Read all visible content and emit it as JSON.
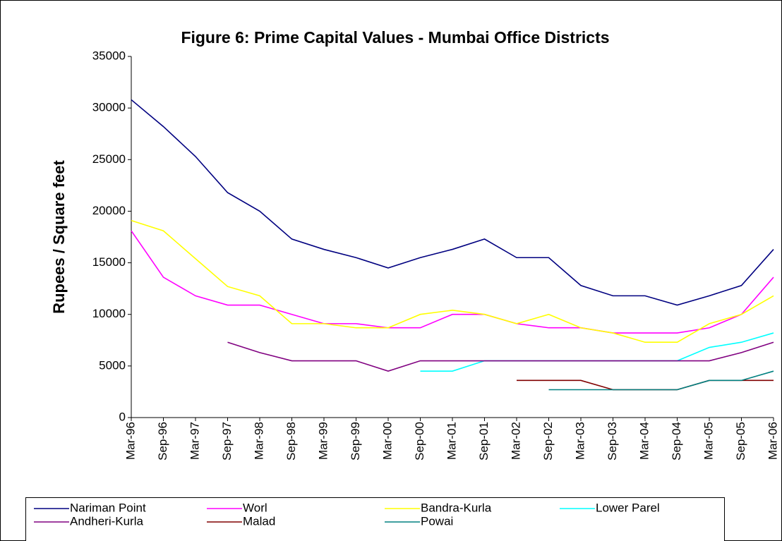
{
  "chart_data": {
    "type": "line",
    "title": "Figure 6: Prime Capital Values - Mumbai Office Districts",
    "y_label": "Rupees / Square feet",
    "categories": [
      "Mar-96",
      "Sep-96",
      "Mar-97",
      "Sep-97",
      "Mar-98",
      "Sep-98",
      "Mar-99",
      "Sep-99",
      "Mar-00",
      "Sep-00",
      "Mar-01",
      "Sep-01",
      "Mar-02",
      "Sep-02",
      "Mar-03",
      "Sep-03",
      "Mar-04",
      "Sep-04",
      "Mar-05",
      "Sep-05",
      "Mar-06"
    ],
    "ylim": [
      0,
      35000
    ],
    "yticks": [
      0,
      5000,
      10000,
      15000,
      20000,
      25000,
      30000,
      35000
    ],
    "grid": false,
    "legend": "bottom",
    "series": [
      {
        "name": "Nariman Point",
        "color": "#000080",
        "values": [
          30800,
          28200,
          25300,
          21800,
          20000,
          17300,
          16300,
          15500,
          14500,
          15500,
          16300,
          17300,
          15500,
          15500,
          12800,
          11800,
          11800,
          10900,
          11800,
          12800,
          16300
        ]
      },
      {
        "name": "Worl",
        "color": "#ff00ff",
        "values": [
          18100,
          13600,
          11800,
          10900,
          10900,
          10000,
          9100,
          9100,
          8700,
          8700,
          10000,
          10000,
          9100,
          8700,
          8700,
          8200,
          8200,
          8200,
          8700,
          10000,
          13600
        ]
      },
      {
        "name": "Bandra-Kurla",
        "color": "#ffff00",
        "values": [
          19100,
          18100,
          15400,
          12700,
          11800,
          9100,
          9100,
          8700,
          8700,
          10000,
          10400,
          10000,
          9100,
          10000,
          8700,
          8200,
          7300,
          7300,
          9100,
          10000,
          11800
        ]
      },
      {
        "name": "Lower Parel",
        "color": "#00ffff",
        "values": [
          null,
          null,
          null,
          null,
          null,
          null,
          null,
          null,
          null,
          4500,
          4500,
          5500,
          5500,
          5500,
          5500,
          5500,
          5500,
          5500,
          6800,
          7300,
          8200
        ]
      },
      {
        "name": "Andheri-Kurla",
        "color": "#800080",
        "values": [
          null,
          null,
          null,
          7300,
          6300,
          5500,
          5500,
          5500,
          4500,
          5500,
          5500,
          5500,
          5500,
          5500,
          5500,
          5500,
          5500,
          5500,
          5500,
          6300,
          7300
        ]
      },
      {
        "name": "Malad",
        "color": "#800000",
        "values": [
          null,
          null,
          null,
          null,
          null,
          null,
          null,
          null,
          null,
          null,
          null,
          null,
          3600,
          3600,
          3600,
          2700,
          2700,
          2700,
          3600,
          3600,
          3600
        ]
      },
      {
        "name": "Powai",
        "color": "#008080",
        "values": [
          null,
          null,
          null,
          null,
          null,
          null,
          null,
          null,
          null,
          null,
          null,
          null,
          null,
          2700,
          2700,
          2700,
          2700,
          2700,
          3600,
          3600,
          4500
        ]
      }
    ]
  }
}
